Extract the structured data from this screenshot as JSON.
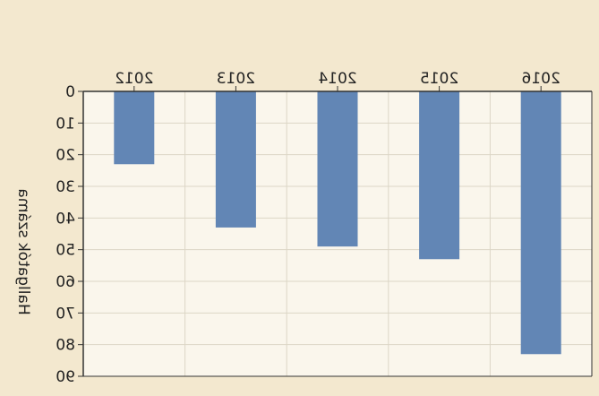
{
  "chart_data": {
    "type": "bar",
    "orientation": "vertical-downward",
    "mirrored": true,
    "categories": [
      "2012",
      "2013",
      "2014",
      "2015",
      "2016"
    ],
    "values": [
      23,
      43,
      49,
      53,
      83
    ],
    "ylabel": "Hallgatók száma",
    "xlabel": "",
    "title": "",
    "ylim": [
      0,
      90
    ],
    "yticks": [
      "0",
      "10",
      "20",
      "30",
      "40",
      "50",
      "60",
      "70",
      "80",
      "90"
    ],
    "x_axis_position": "top",
    "grid": true,
    "colors": {
      "bar": "#6286b5",
      "plot_background": "#faf6ec",
      "page_background": "#f3e8cf",
      "axis": "#333333"
    }
  }
}
